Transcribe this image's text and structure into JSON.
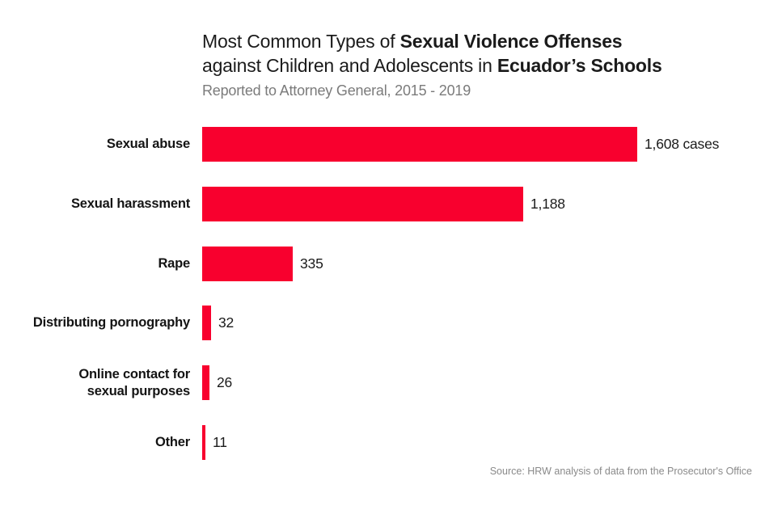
{
  "header": {
    "title_line1_regular": "Most Common Types of ",
    "title_line1_bold": "Sexual Violence Offenses",
    "title_line2_regular": "against Children and Adolescents in ",
    "title_line2_bold": "Ecuador’s Schools",
    "subtitle": "Reported to Attorney General, 2015 - 2019"
  },
  "source_note": "Source: HRW analysis of data from the Prosecutor's Office",
  "colors": {
    "bar_red": "#F8002E",
    "title_text": "#1b1b1b",
    "subtitle_gray": "#7b7b7b",
    "source_gray": "#8a8a8a"
  },
  "chart_data": {
    "type": "bar",
    "orientation": "horizontal",
    "title": "Most Common Types of Sexual Violence Offenses against Children and Adolescents in Ecuador’s Schools",
    "subtitle": "Reported to Attorney General, 2015 - 2019",
    "categories": [
      "Sexual abuse",
      "Sexual harassment",
      "Rape",
      "Distributing pornography",
      "Online contact for\nsexual purposes",
      "Other"
    ],
    "values": [
      1608,
      1188,
      335,
      32,
      26,
      11
    ],
    "value_labels": [
      "1,608 cases",
      "1,188",
      "335",
      "32",
      "26",
      "11"
    ],
    "xlim": [
      0,
      1608
    ],
    "grid": false,
    "legend": false,
    "bar_color": "#F8002E",
    "source": "Source: HRW analysis of data from the Prosecutor's Office"
  }
}
